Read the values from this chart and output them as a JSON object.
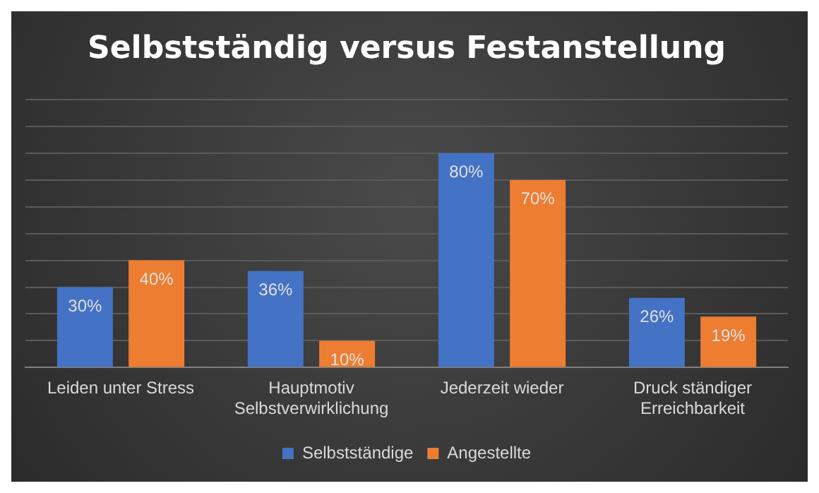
{
  "chart_data": {
    "type": "bar",
    "title": "Selbstständig versus Festanstellung",
    "categories": [
      "Leiden unter Stress",
      "Hauptmotiv Selbstverwirklichung",
      "Jederzeit wieder",
      "Druck ständiger Erreichbarkeit"
    ],
    "series": [
      {
        "name": "Selbstständige",
        "color": "#4472c4",
        "values": [
          30,
          36,
          80,
          26
        ],
        "value_labels": [
          "30%",
          "36%",
          "80%",
          "26%"
        ]
      },
      {
        "name": "Angestellte",
        "color": "#ed7d31",
        "values": [
          40,
          10,
          70,
          19
        ],
        "value_labels": [
          "40%",
          "10%",
          "70%",
          "19%"
        ]
      }
    ],
    "ylim": [
      0,
      100
    ],
    "yticks": [
      {
        "value": 0,
        "label": null
      },
      {
        "value": 10,
        "label": null
      },
      {
        "value": 20,
        "label": null
      },
      {
        "value": 30,
        "label": null
      },
      {
        "value": 40,
        "label": null
      },
      {
        "value": 50,
        "label": null
      },
      {
        "value": 60,
        "label": null
      },
      {
        "value": 70,
        "label": null
      },
      {
        "value": 80,
        "label": null
      },
      {
        "value": 90,
        "label": null
      },
      {
        "value": 100,
        "label": null
      }
    ],
    "tick_labels": "x",
    "grid": "y",
    "legend": "bottom"
  }
}
